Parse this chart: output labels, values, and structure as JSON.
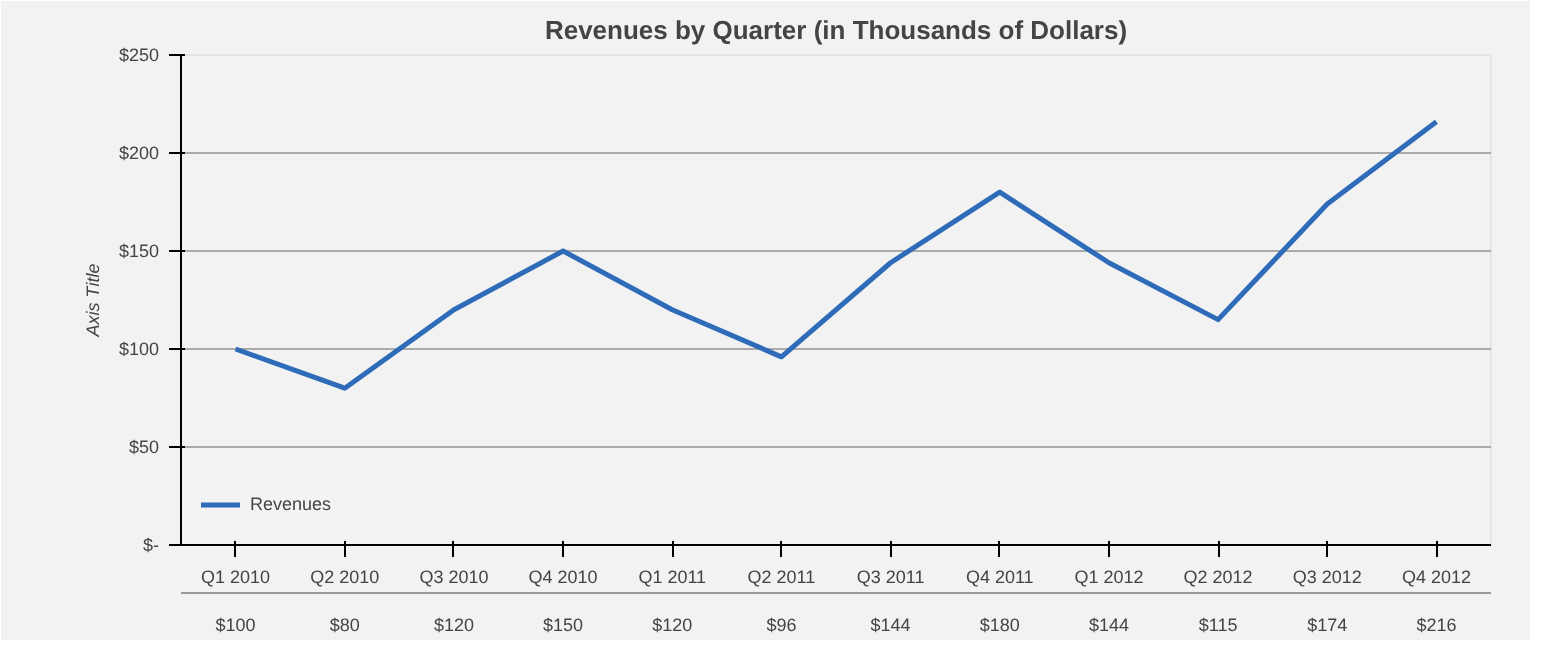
{
  "chart_data": {
    "type": "line",
    "title": "Revenues by Quarter (in Thousands of Dollars)",
    "ylabel": "Axis Title",
    "categories": [
      "Q1 2010",
      "Q2 2010",
      "Q3 2010",
      "Q4 2010",
      "Q1 2011",
      "Q2 2011",
      "Q3 2011",
      "Q4 2011",
      "Q1 2012",
      "Q2 2012",
      "Q3 2012",
      "Q4 2012"
    ],
    "series": [
      {
        "name": "Revenues",
        "color": "#2e6bb8",
        "values": [
          100,
          80,
          120,
          150,
          120,
          96,
          144,
          180,
          144,
          115,
          174,
          216
        ],
        "value_labels": [
          "$100",
          "$80",
          "$120",
          "$150",
          "$120",
          "$96",
          "$144",
          "$180",
          "$144",
          "$115",
          "$174",
          "$216"
        ]
      }
    ],
    "ylim": [
      0,
      250
    ],
    "yticks": [
      {
        "value": 0,
        "label": "$-"
      },
      {
        "value": 50,
        "label": "$50"
      },
      {
        "value": 100,
        "label": "$100"
      },
      {
        "value": 150,
        "label": "$150"
      },
      {
        "value": 200,
        "label": "$200"
      },
      {
        "value": 250,
        "label": "$250"
      }
    ],
    "grid": "y",
    "legend": "bottom left",
    "marker": "none",
    "line_style": "solid"
  }
}
